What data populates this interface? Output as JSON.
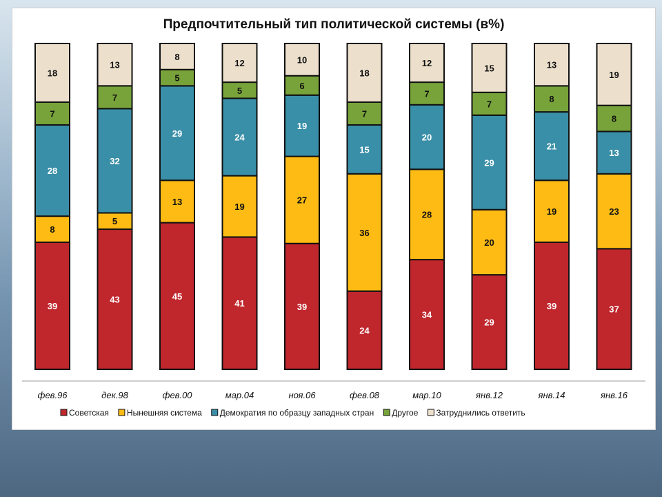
{
  "chart_data": {
    "type": "bar",
    "stacked": true,
    "title": "Предпочтительный тип политической системы (в%)",
    "categories": [
      "фев.96",
      "дек.98",
      "фев.00",
      "мар.04",
      "ноя.06",
      "фев.08",
      "мар.10",
      "янв.12",
      "янв.14",
      "янв.16"
    ],
    "series": [
      {
        "name": "Советская",
        "color": "#c0272d",
        "values": [
          39,
          43,
          45,
          41,
          39,
          24,
          34,
          29,
          39,
          37
        ]
      },
      {
        "name": "Нынешняя система",
        "color": "#fdbb14",
        "values": [
          8,
          5,
          13,
          19,
          27,
          36,
          28,
          20,
          19,
          23
        ]
      },
      {
        "name": "Демократия по образцу западных стран",
        "color": "#3a8fa8",
        "values": [
          28,
          32,
          29,
          24,
          19,
          15,
          20,
          29,
          21,
          13
        ]
      },
      {
        "name": "Другое",
        "color": "#78a33a",
        "values": [
          7,
          7,
          5,
          5,
          6,
          7,
          7,
          7,
          8,
          8
        ]
      },
      {
        "name": "Затруднились ответить",
        "color": "#ece0cd",
        "values": [
          18,
          13,
          8,
          12,
          10,
          18,
          12,
          15,
          13,
          19
        ]
      }
    ],
    "legend": "bottom",
    "grid": false
  }
}
